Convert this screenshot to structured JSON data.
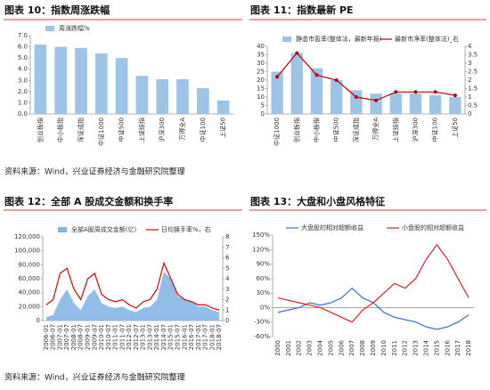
{
  "chart_data": [
    {
      "type": "bar",
      "title": "图表 10：指数周涨跌幅",
      "categories": [
        "创业板指",
        "中小板指",
        "深证成指",
        "中证1000",
        "中证500",
        "上证综指",
        "沪深300",
        "万得全A",
        "中证100",
        "上证50"
      ],
      "series": [
        {
          "name": "周涨跌幅%",
          "color": "#9dc3e6",
          "type": "bar",
          "values": [
            6.2,
            6.0,
            5.9,
            5.4,
            5.0,
            3.4,
            3.1,
            3.1,
            2.3,
            1.2
          ]
        }
      ],
      "ylim": [
        0,
        7
      ],
      "yticks": [
        {
          "value": 0,
          "label": "0.0"
        },
        {
          "value": 1,
          "label": "1.0"
        },
        {
          "value": 2,
          "label": "2.0"
        },
        {
          "value": 3,
          "label": "3.0"
        },
        {
          "value": 4,
          "label": "4.0"
        },
        {
          "value": 5,
          "label": "5.0"
        },
        {
          "value": 6,
          "label": "6.0"
        },
        {
          "value": 7,
          "label": "7.0"
        }
      ],
      "legend": "top"
    },
    {
      "type": "bar",
      "title": "图表 11：指数最新 PE",
      "categories": [
        "中证1000",
        "创业板指",
        "中小板指",
        "中证500",
        "深证成指",
        "万得全A",
        "上证综指",
        "沪深300",
        "中证100",
        "上证50"
      ],
      "series": [
        {
          "name": "静态市盈率(整体法，最新年报)",
          "color": "#9dc3e6",
          "type": "bar",
          "values": [
            25,
            36,
            27,
            20,
            14,
            12,
            12,
            12,
            11,
            10
          ]
        },
        {
          "name": "最新市净率(整体法)_右",
          "color": "#c00000",
          "type": "line",
          "axis": "y2",
          "markers": true,
          "values": [
            2.2,
            3.6,
            2.3,
            2.0,
            1.0,
            0.8,
            1.3,
            1.3,
            1.3,
            1.1
          ]
        }
      ],
      "ylim": [
        0,
        40
      ],
      "yticks": [
        0,
        5,
        10,
        15,
        20,
        25,
        30,
        35,
        40
      ],
      "y2lim": [
        0,
        4
      ],
      "y2ticks": [
        0,
        0.5,
        1,
        1.5,
        2,
        2.5,
        3,
        3.5,
        4
      ],
      "legend": "top"
    },
    {
      "type": "bar",
      "title": "图表 12：全部 A 股成交金额和换手率",
      "categories": [
        "2006-01",
        "2006-07",
        "2007-01",
        "2007-07",
        "2008-01",
        "2008-07",
        "2009-01",
        "2009-07",
        "2010-01",
        "2010-07",
        "2011-01",
        "2011-07",
        "2012-01",
        "2012-07",
        "2013-01",
        "2013-07",
        "2014-01",
        "2014-07",
        "2015-01",
        "2015-07",
        "2016-01",
        "2016-07",
        "2017-01",
        "2017-07",
        "2018-01",
        "2018-07"
      ],
      "series": [
        {
          "name": "全部A股周成交金额(亿)",
          "color": "#7fb2e5",
          "type": "area",
          "values": [
            5000,
            8000,
            30000,
            45000,
            25000,
            15000,
            35000,
            45000,
            25000,
            20000,
            18000,
            20000,
            15000,
            12000,
            18000,
            20000,
            30000,
            70000,
            60000,
            35000,
            30000,
            28000,
            20000,
            20000,
            15000,
            12000
          ]
        },
        {
          "name": "日均换手率%，右",
          "color": "#e00000",
          "type": "line",
          "axis": "y2",
          "values": [
            1.5,
            2,
            4.5,
            5,
            3,
            2,
            4,
            4.5,
            2.5,
            2,
            1.8,
            2,
            1.5,
            1.2,
            1.8,
            2,
            3,
            5.5,
            4,
            2.5,
            2,
            1.8,
            1.5,
            1.5,
            1.2,
            1
          ]
        }
      ],
      "ylim": [
        0,
        120000
      ],
      "yticks": [
        0,
        {
          "value": 20000,
          "label": "20,000"
        },
        {
          "value": 40000,
          "label": "40,000"
        },
        {
          "value": 60000,
          "label": "60,000"
        },
        {
          "value": 80000,
          "label": "80,000"
        },
        {
          "value": 100000,
          "label": "100,000"
        },
        {
          "value": 120000,
          "label": "120,000"
        }
      ],
      "y2lim": [
        0,
        8
      ],
      "y2ticks": [
        0,
        1,
        2,
        3,
        4,
        5,
        6,
        7,
        8
      ],
      "legend": "top"
    },
    {
      "type": "line",
      "title": "图表 13：大盘和小盘风格特征",
      "categories": [
        "2000",
        "2001",
        "2002",
        "2003",
        "2004",
        "2005",
        "2006",
        "2007",
        "2008",
        "2009",
        "2010",
        "2011",
        "2012",
        "2013",
        "2014",
        "2015",
        "2016",
        "2017",
        "2018"
      ],
      "series": [
        {
          "name": "大盘股的相对超额收益",
          "color": "#3a6fd8",
          "type": "line",
          "values": [
            -10,
            -5,
            0,
            10,
            5,
            10,
            20,
            40,
            20,
            10,
            -10,
            -20,
            -25,
            -30,
            -40,
            -45,
            -40,
            -30,
            -15
          ]
        },
        {
          "name": "小盘股的相对超额收益",
          "color": "#e02020",
          "type": "line",
          "values": [
            20,
            15,
            10,
            5,
            0,
            -10,
            -20,
            -30,
            -5,
            10,
            30,
            50,
            40,
            60,
            100,
            130,
            100,
            60,
            20
          ]
        }
      ],
      "ylim": [
        -60,
        150
      ],
      "yticks": [
        {
          "value": -60,
          "label": "-60%"
        },
        {
          "value": -30,
          "label": "-30%"
        },
        {
          "value": 0,
          "label": "0%"
        },
        {
          "value": 30,
          "label": "30%"
        },
        {
          "value": 60,
          "label": "60%"
        },
        {
          "value": 90,
          "label": "90%"
        },
        {
          "value": 120,
          "label": "120%"
        },
        {
          "value": 150,
          "label": "150%"
        }
      ],
      "legend": "top"
    }
  ],
  "notes": [
    "资料来源：Wind，兴业证券经济与金融研究院整理",
    "资料来源：Wind，兴业证券经济与金融研究院整理"
  ]
}
